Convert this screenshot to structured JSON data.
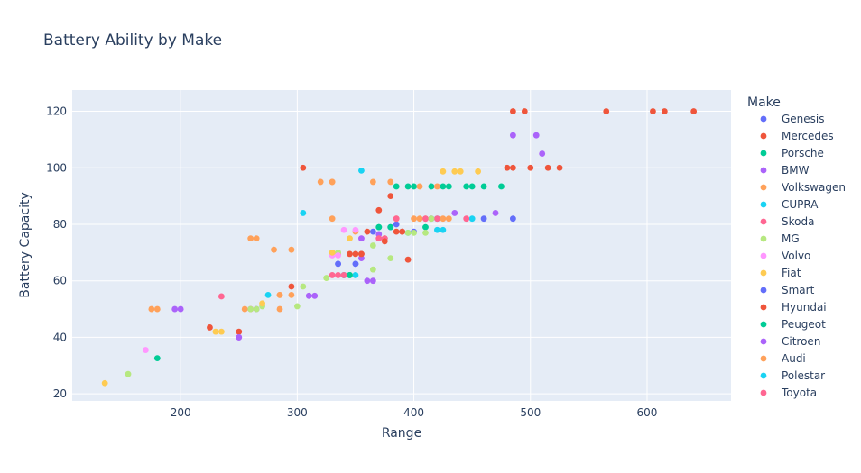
{
  "chart_data": {
    "type": "scatter",
    "title": "Battery Ability by Make",
    "xlabel": "Range",
    "ylabel": "Battery Capacity",
    "xlim": [
      107,
      672
    ],
    "ylim": [
      17.5,
      127.5
    ],
    "x_ticks": [
      200,
      300,
      400,
      500,
      600
    ],
    "y_ticks": [
      20,
      40,
      60,
      80,
      100,
      120
    ],
    "grid": true,
    "legend_title": "Make",
    "legend_position": "right",
    "series": [
      {
        "name": "Genesis",
        "color": "#636efa",
        "points": [
          [
            335,
            66
          ],
          [
            350,
            66
          ],
          [
            365,
            77.4
          ],
          [
            380,
            79
          ],
          [
            385,
            80
          ],
          [
            400,
            77.4
          ],
          [
            415,
            82
          ],
          [
            460,
            82
          ],
          [
            485,
            82
          ]
        ]
      },
      {
        "name": "Mercedes",
        "color": "#EF553B",
        "points": [
          [
            225,
            43.5
          ],
          [
            250,
            42
          ],
          [
            295,
            58
          ],
          [
            305,
            100
          ],
          [
            345,
            69.5
          ],
          [
            350,
            69.5
          ],
          [
            355,
            69.5
          ],
          [
            370,
            85
          ],
          [
            375,
            75
          ],
          [
            380,
            90
          ],
          [
            385,
            77.4
          ],
          [
            390,
            77.4
          ],
          [
            395,
            67.5
          ],
          [
            480,
            100
          ],
          [
            485,
            100
          ],
          [
            485,
            120
          ],
          [
            495,
            120
          ],
          [
            500,
            100
          ],
          [
            515,
            100
          ],
          [
            525,
            100
          ],
          [
            565,
            120
          ],
          [
            605,
            120
          ],
          [
            615,
            120
          ],
          [
            640,
            120
          ]
        ]
      },
      {
        "name": "Porsche",
        "color": "#00cc96",
        "points": [
          [
            180,
            32.6
          ],
          [
            340,
            62
          ],
          [
            345,
            62
          ],
          [
            370,
            79
          ],
          [
            380,
            79
          ],
          [
            385,
            93.4
          ],
          [
            395,
            93.4
          ],
          [
            400,
            93.4
          ],
          [
            410,
            79
          ],
          [
            415,
            93.4
          ],
          [
            425,
            93.4
          ],
          [
            430,
            93.4
          ],
          [
            445,
            93.4
          ],
          [
            450,
            93.4
          ],
          [
            460,
            93.4
          ],
          [
            475,
            93.4
          ]
        ]
      },
      {
        "name": "BMW",
        "color": "#ab63fa",
        "points": [
          [
            195,
            50
          ],
          [
            200,
            50
          ],
          [
            250,
            40
          ],
          [
            265,
            50
          ],
          [
            310,
            54.7
          ],
          [
            315,
            54.7
          ],
          [
            355,
            68
          ],
          [
            360,
            60
          ],
          [
            365,
            60
          ],
          [
            370,
            76.5
          ],
          [
            435,
            84
          ],
          [
            470,
            84
          ],
          [
            485,
            111.5
          ],
          [
            505,
            111.5
          ],
          [
            510,
            105
          ]
        ]
      },
      {
        "name": "Volkswagen",
        "color": "#FFA15A",
        "points": [
          [
            175,
            50
          ],
          [
            180,
            50
          ],
          [
            255,
            50
          ],
          [
            260,
            75
          ],
          [
            265,
            75
          ],
          [
            280,
            71
          ],
          [
            285,
            50
          ],
          [
            285,
            55
          ],
          [
            295,
            55
          ],
          [
            295,
            71
          ],
          [
            320,
            95
          ],
          [
            330,
            82
          ],
          [
            330,
            95
          ],
          [
            335,
            69.5
          ],
          [
            350,
            77.4
          ],
          [
            365,
            95
          ],
          [
            380,
            95
          ],
          [
            385,
            82
          ],
          [
            400,
            82
          ],
          [
            405,
            82
          ],
          [
            405,
            93.4
          ],
          [
            410,
            82
          ],
          [
            420,
            93.4
          ],
          [
            425,
            82
          ],
          [
            430,
            82
          ]
        ]
      },
      {
        "name": "CUPRA",
        "color": "#19d3f3",
        "points": [
          [
            275,
            55
          ],
          [
            305,
            84
          ],
          [
            340,
            62
          ],
          [
            345,
            62
          ],
          [
            350,
            62
          ],
          [
            355,
            99
          ],
          [
            395,
            77
          ],
          [
            420,
            82
          ],
          [
            425,
            78
          ],
          [
            450,
            82
          ]
        ]
      },
      {
        "name": "Skoda",
        "color": "#FF6692",
        "points": [
          [
            235,
            54.5
          ],
          [
            260,
            50
          ],
          [
            330,
            62
          ],
          [
            335,
            62
          ],
          [
            340,
            62
          ],
          [
            370,
            75
          ],
          [
            375,
            75
          ],
          [
            385,
            82
          ],
          [
            410,
            82
          ],
          [
            420,
            82
          ],
          [
            445,
            82
          ]
        ]
      },
      {
        "name": "MG",
        "color": "#B6E880",
        "points": [
          [
            155,
            27
          ],
          [
            260,
            50
          ],
          [
            265,
            50
          ],
          [
            270,
            51
          ],
          [
            300,
            51
          ],
          [
            305,
            58
          ],
          [
            325,
            61
          ],
          [
            330,
            70
          ],
          [
            335,
            70
          ],
          [
            345,
            62
          ],
          [
            365,
            64
          ],
          [
            365,
            72.5
          ],
          [
            380,
            68
          ],
          [
            395,
            77
          ],
          [
            400,
            77
          ],
          [
            410,
            77
          ],
          [
            415,
            82
          ]
        ]
      },
      {
        "name": "Volvo",
        "color": "#FF97FF",
        "points": [
          [
            170,
            35.5
          ],
          [
            330,
            69
          ],
          [
            335,
            69
          ],
          [
            340,
            78
          ],
          [
            350,
            78
          ],
          [
            355,
            75
          ]
        ]
      },
      {
        "name": "Fiat",
        "color": "#FECB52",
        "points": [
          [
            135,
            23.8
          ],
          [
            230,
            42
          ],
          [
            235,
            42
          ],
          [
            270,
            52
          ],
          [
            330,
            70
          ],
          [
            345,
            75
          ],
          [
            425,
            98.7
          ],
          [
            435,
            98.7
          ],
          [
            440,
            98.7
          ],
          [
            455,
            98.7
          ]
        ]
      },
      {
        "name": "Smart",
        "color": "#636efa",
        "points": [
          [
            335,
            66
          ],
          [
            350,
            66
          ]
        ]
      },
      {
        "name": "Hyundai",
        "color": "#EF553B",
        "points": [
          [
            355,
            69.5
          ],
          [
            360,
            77.4
          ],
          [
            375,
            74
          ],
          [
            390,
            77.4
          ]
        ]
      },
      {
        "name": "Peugeot",
        "color": "#00cc96",
        "points": [
          [
            345,
            62
          ],
          [
            370,
            79
          ]
        ]
      },
      {
        "name": "Citroen",
        "color": "#ab63fa",
        "points": [
          [
            250,
            40
          ],
          [
            355,
            75
          ]
        ]
      },
      {
        "name": "Audi",
        "color": "#FFA15A",
        "points": [
          [
            285,
            55
          ],
          [
            330,
            95
          ]
        ]
      },
      {
        "name": "Polestar",
        "color": "#19d3f3",
        "points": [
          [
            420,
            78
          ]
        ]
      },
      {
        "name": "Toyota",
        "color": "#FF6692",
        "points": [
          [
            370,
            75
          ]
        ]
      }
    ]
  }
}
